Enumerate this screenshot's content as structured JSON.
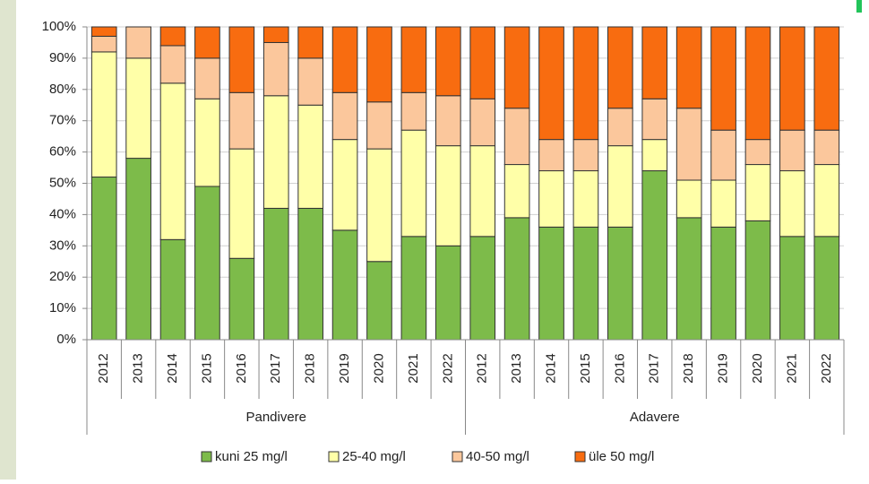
{
  "chart_data": {
    "type": "stacked_bar",
    "groups": [
      {
        "name": "Pandivere",
        "categories": [
          "2012",
          "2013",
          "2014",
          "2015",
          "2016",
          "2017",
          "2018",
          "2019",
          "2020",
          "2021",
          "2022"
        ]
      },
      {
        "name": "Adavere",
        "categories": [
          "2012",
          "2013",
          "2014",
          "2015",
          "2016",
          "2017",
          "2018",
          "2019",
          "2020",
          "2021",
          "2022"
        ]
      }
    ],
    "series": [
      {
        "name": "kuni 25 mg/l",
        "color": "#7dbb4a",
        "values": [
          52,
          58,
          32,
          49,
          26,
          42,
          42,
          35,
          25,
          33,
          30,
          33,
          39,
          36,
          36,
          36,
          54,
          39,
          36,
          38,
          33,
          33
        ]
      },
      {
        "name": "25-40 mg/l",
        "color": "#ffffa8",
        "values": [
          40,
          32,
          50,
          28,
          35,
          36,
          33,
          29,
          36,
          34,
          32,
          29,
          17,
          18,
          18,
          26,
          10,
          12,
          15,
          18,
          21,
          23
        ]
      },
      {
        "name": "40-50 mg/l",
        "color": "#fbc79c",
        "values": [
          5,
          10,
          12,
          13,
          18,
          17,
          15,
          15,
          15,
          12,
          16,
          15,
          18,
          10,
          10,
          12,
          13,
          23,
          16,
          8,
          13,
          11
        ]
      },
      {
        "name": "üle 50 mg/l",
        "color": "#f86c10",
        "values": [
          3,
          0,
          6,
          10,
          21,
          5,
          10,
          21,
          24,
          21,
          22,
          23,
          26,
          36,
          36,
          26,
          23,
          26,
          33,
          36,
          33,
          33
        ]
      }
    ],
    "ylim": [
      0,
      100
    ],
    "yticks": [
      {
        "value": 0,
        "label": "0%"
      },
      {
        "value": 10,
        "label": "10%"
      },
      {
        "value": 20,
        "label": "20%"
      },
      {
        "value": 30,
        "label": "30%"
      },
      {
        "value": 40,
        "label": "40%"
      },
      {
        "value": 50,
        "label": "50%"
      },
      {
        "value": 60,
        "label": "60%"
      },
      {
        "value": 70,
        "label": "70%"
      },
      {
        "value": 80,
        "label": "80%"
      },
      {
        "value": 90,
        "label": "90%"
      },
      {
        "value": 100,
        "label": "100%"
      }
    ],
    "grid": true
  }
}
